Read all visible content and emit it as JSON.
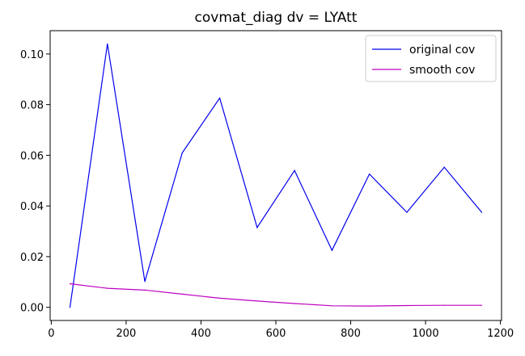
{
  "chart_data": {
    "type": "line",
    "title": "covmat_diag dv = LYAtt",
    "xlabel": "",
    "ylabel": "",
    "xlim": [
      -3,
      1203
    ],
    "ylim": [
      -0.0052,
      0.1092
    ],
    "xticks": [
      0,
      200,
      400,
      600,
      800,
      1000,
      1200
    ],
    "xtick_labels": [
      "0",
      "200",
      "400",
      "600",
      "800",
      "1000",
      "1200"
    ],
    "yticks": [
      0.0,
      0.02,
      0.04,
      0.06,
      0.08,
      0.1
    ],
    "ytick_labels": [
      "0.00",
      "0.02",
      "0.04",
      "0.06",
      "0.08",
      "0.10"
    ],
    "grid": false,
    "legend_position": "top-right",
    "x": [
      50,
      150,
      250,
      350,
      450,
      550,
      650,
      750,
      850,
      950,
      1050,
      1150
    ],
    "series": [
      {
        "name": "original cov",
        "color": "#0000ee",
        "values": [
          0.0,
          0.104,
          0.0102,
          0.061,
          0.0826,
          0.0315,
          0.054,
          0.0225,
          0.0526,
          0.0375,
          0.0553,
          0.0375
        ]
      },
      {
        "name": "smooth cov",
        "color": "#bf00bf",
        "values": [
          0.0093,
          0.0075,
          0.0068,
          0.0052,
          0.0036,
          0.0025,
          0.0015,
          0.0006,
          0.0005,
          0.0007,
          0.0008,
          0.0008
        ]
      }
    ]
  }
}
